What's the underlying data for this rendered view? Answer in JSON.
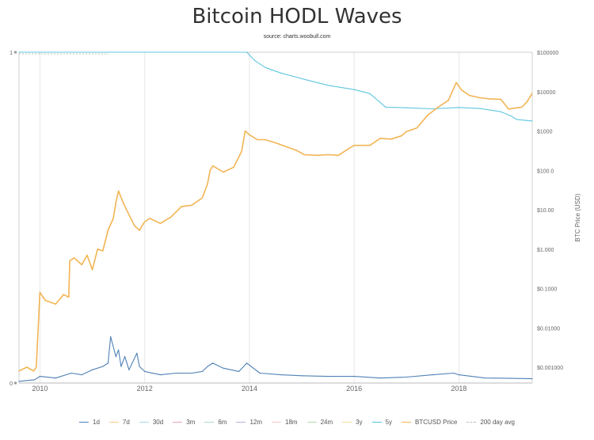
{
  "chart_data": {
    "type": "line",
    "title": "Bitcoin HODL Waves",
    "subtitle": "source: charts.woobull.com",
    "x_ticks": [
      "2010",
      "2012",
      "2014",
      "2016",
      "2018"
    ],
    "y_left_ticks": [
      "1",
      "0"
    ],
    "y_right_ticks": [
      "$100000",
      "$10000",
      "$1000",
      "$100.0",
      "$10.00",
      "$1.000",
      "$0.1000",
      "$0.01000",
      "$0.001000"
    ],
    "y_right_label": "BTC Price (USD)",
    "y_right_scale": "log",
    "y_right_range": [
      0.001,
      100000
    ],
    "y_left_range": [
      0,
      1
    ],
    "x_range": [
      2009.6,
      2019.4
    ],
    "grid": "vertical",
    "legend_position": "bottom",
    "legend": [
      {
        "name": "1d",
        "color": "#4f80b6",
        "style": "solid"
      },
      {
        "name": "7d",
        "color": "#f6c98f",
        "style": "solid"
      },
      {
        "name": "30d",
        "color": "#a6dbe8",
        "style": "solid"
      },
      {
        "name": "3m",
        "color": "#e8a7b4",
        "style": "solid"
      },
      {
        "name": "6m",
        "color": "#a8dcc8",
        "style": "solid"
      },
      {
        "name": "12m",
        "color": "#b6b2d9",
        "style": "solid"
      },
      {
        "name": "18m",
        "color": "#f4c8c8",
        "style": "solid"
      },
      {
        "name": "24m",
        "color": "#b8d8b0",
        "style": "solid"
      },
      {
        "name": "3y",
        "color": "#f6dca0",
        "style": "solid"
      },
      {
        "name": "5y",
        "color": "#4ec3e0",
        "style": "solid"
      },
      {
        "name": "BTCUSD Price",
        "color": "#f2b453",
        "style": "solid"
      },
      {
        "name": "200 day avg",
        "color": "#bbbbbb",
        "style": "dashed"
      }
    ],
    "series": [
      {
        "name": "5y",
        "axis": "left",
        "color": "#5fc6df",
        "x": [
          2009.6,
          2013.95,
          2014.1,
          2014.3,
          2014.6,
          2015.0,
          2015.5,
          2016.0,
          2016.3,
          2016.6,
          2017.0,
          2017.5,
          2018.0,
          2018.4,
          2018.8,
          2019.0,
          2019.1,
          2019.4
        ],
        "y": [
          1.0,
          1.0,
          0.975,
          0.954,
          0.937,
          0.92,
          0.9,
          0.887,
          0.875,
          0.834,
          0.832,
          0.829,
          0.833,
          0.83,
          0.82,
          0.807,
          0.797,
          0.792
        ]
      },
      {
        "name": "BTCUSD Price",
        "axis": "right",
        "color": "#f2b453",
        "x": [
          2009.6,
          2009.75,
          2009.88,
          2009.93,
          2010.0,
          2010.1,
          2010.3,
          2010.45,
          2010.55,
          2010.57,
          2010.65,
          2010.8,
          2010.9,
          2011.0,
          2011.1,
          2011.2,
          2011.3,
          2011.4,
          2011.45,
          2011.5,
          2011.6,
          2011.8,
          2011.9,
          2012.0,
          2012.1,
          2012.3,
          2012.5,
          2012.7,
          2012.9,
          2013.1,
          2013.2,
          2013.25,
          2013.3,
          2013.5,
          2013.7,
          2013.85,
          2013.92,
          2014.0,
          2014.15,
          2014.3,
          2014.5,
          2014.7,
          2014.9,
          2015.05,
          2015.3,
          2015.5,
          2015.7,
          2015.9,
          2016.0,
          2016.3,
          2016.5,
          2016.7,
          2016.9,
          2017.0,
          2017.2,
          2017.4,
          2017.6,
          2017.8,
          2017.95,
          2018.05,
          2018.2,
          2018.4,
          2018.6,
          2018.8,
          2018.95,
          2019.05,
          2019.2,
          2019.3,
          2019.4
        ],
        "y": [
          0.0008,
          0.001,
          0.0008,
          0.001,
          0.08,
          0.05,
          0.04,
          0.07,
          0.06,
          0.5,
          0.6,
          0.4,
          0.7,
          0.3,
          1.0,
          0.9,
          3.0,
          6.0,
          15.0,
          30.0,
          14.0,
          4.0,
          3.0,
          5.0,
          6.0,
          4.5,
          6.5,
          12.0,
          13.0,
          20.0,
          45.0,
          100.0,
          130.0,
          90.0,
          120.0,
          300.0,
          1000.0,
          800.0,
          600.0,
          600.0,
          500.0,
          400.0,
          320.0,
          250.0,
          240.0,
          250.0,
          240.0,
          360.0,
          430.0,
          430.0,
          650.0,
          620.0,
          750.0,
          970.0,
          1200.0,
          2500.0,
          4000.0,
          6000.0,
          17000.0,
          11000.0,
          8000.0,
          7000.0,
          6500.0,
          6400.0,
          3600.0,
          3800.0,
          4000.0,
          5500.0,
          9000.0
        ]
      },
      {
        "name": "1d",
        "axis": "left",
        "color": "#4f80b6",
        "x": [
          2009.6,
          2009.9,
          2010.0,
          2010.3,
          2010.6,
          2010.8,
          2011.0,
          2011.2,
          2011.3,
          2011.35,
          2011.45,
          2011.5,
          2011.55,
          2011.62,
          2011.7,
          2011.85,
          2011.9,
          2012.0,
          2012.3,
          2012.6,
          2012.9,
          2013.1,
          2013.2,
          2013.3,
          2013.5,
          2013.8,
          2013.95,
          2014.2,
          2014.6,
          2015.0,
          2015.5,
          2016.0,
          2016.5,
          2017.0,
          2017.5,
          2017.9,
          2018.0,
          2018.5,
          2019.0,
          2019.4
        ],
        "y": [
          0.005,
          0.01,
          0.02,
          0.015,
          0.03,
          0.025,
          0.04,
          0.05,
          0.06,
          0.14,
          0.08,
          0.1,
          0.05,
          0.08,
          0.04,
          0.09,
          0.05,
          0.035,
          0.025,
          0.03,
          0.03,
          0.035,
          0.05,
          0.06,
          0.045,
          0.035,
          0.06,
          0.03,
          0.025,
          0.022,
          0.02,
          0.02,
          0.015,
          0.018,
          0.025,
          0.03,
          0.025,
          0.015,
          0.014,
          0.013
        ]
      },
      {
        "name": "200 day avg",
        "axis": "left",
        "color": "#c8c8c8",
        "x": [
          2009.6,
          2011.3
        ],
        "y": [
          0.995,
          0.995
        ]
      }
    ]
  }
}
